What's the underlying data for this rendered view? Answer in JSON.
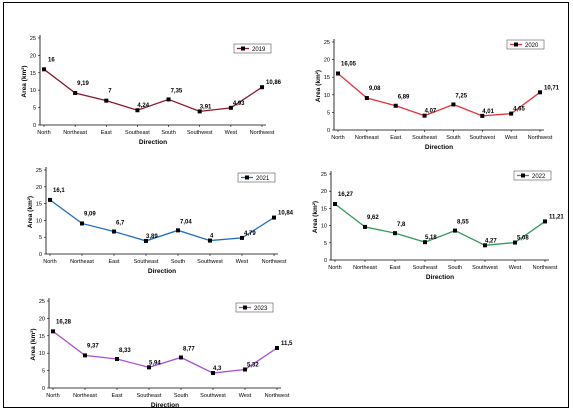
{
  "chart_data": [
    {
      "type": "line",
      "categories": [
        "North",
        "Northeast",
        "East",
        "Southeast",
        "South",
        "Southwest",
        "West",
        "Northwest"
      ],
      "series": [
        {
          "name": "2019",
          "values": [
            16,
            9.19,
            7,
            4.24,
            7.35,
            3.91,
            4.93,
            10.86
          ],
          "color": "#8b1a2e"
        }
      ],
      "data_labels": [
        "16",
        "9,19",
        "7",
        "4,24",
        "7,35",
        "3,91",
        "4,93",
        "10,86"
      ],
      "xlabel": "Direction",
      "ylabel": "Area (km²)",
      "ylim": [
        0,
        25
      ],
      "yticks": [
        "0",
        "5",
        "10",
        "15",
        "20",
        "25"
      ],
      "legend": "top-right",
      "grid": false
    },
    {
      "type": "line",
      "categories": [
        "North",
        "Northeast",
        "East",
        "Southeast",
        "South",
        "Southwest",
        "West",
        "Northwest"
      ],
      "series": [
        {
          "name": "2020",
          "values": [
            16.05,
            9.08,
            6.89,
            4.07,
            7.25,
            4.01,
            4.65,
            10.71
          ],
          "color": "#e0353b"
        }
      ],
      "data_labels": [
        "16,05",
        "9,08",
        "6,89",
        "4,07",
        "7,25",
        "4,01",
        "4,65",
        "10,71"
      ],
      "xlabel": "Direction",
      "ylabel": "Area (km²)",
      "ylim": [
        0,
        25
      ],
      "yticks": [
        "0",
        "5",
        "10",
        "15",
        "20",
        "25"
      ],
      "legend": "top-right",
      "grid": false
    },
    {
      "type": "line",
      "categories": [
        "North",
        "Northeast",
        "East",
        "Southeast",
        "South",
        "Southwest",
        "West",
        "Northwest"
      ],
      "series": [
        {
          "name": "2021",
          "values": [
            16.1,
            9.09,
            6.7,
            3.89,
            7.04,
            4,
            4.79,
            10.84
          ],
          "color": "#1f6fbf"
        }
      ],
      "data_labels": [
        "16,1",
        "9,09",
        "6,7",
        "3,89",
        "7,04",
        "4",
        "4,79",
        "10,84"
      ],
      "xlabel": "Direction",
      "ylabel": "Area (km²)",
      "ylim": [
        0,
        25
      ],
      "yticks": [
        "0",
        "5",
        "10",
        "15",
        "20",
        "25"
      ],
      "legend": "top-right",
      "grid": false
    },
    {
      "type": "line",
      "categories": [
        "North",
        "Northeast",
        "East",
        "Southeast",
        "South",
        "Southwest",
        "West",
        "Northwest"
      ],
      "series": [
        {
          "name": "2022",
          "values": [
            16.27,
            9.62,
            7.8,
            5.18,
            8.55,
            4.27,
            5.08,
            11.21
          ],
          "color": "#2e9c5a"
        }
      ],
      "data_labels": [
        "16,27",
        "9,62",
        "7,8",
        "5,18",
        "8,55",
        "4,27",
        "5,08",
        "11,21"
      ],
      "xlabel": "Direction",
      "ylabel": "Area (km²)",
      "ylim": [
        0,
        25
      ],
      "yticks": [
        "0",
        "5",
        "10",
        "15",
        "20",
        "25"
      ],
      "legend": "top-right",
      "grid": false
    },
    {
      "type": "line",
      "categories": [
        "North",
        "Northeast",
        "East",
        "Southeast",
        "South",
        "Southwest",
        "West",
        "Northwest"
      ],
      "series": [
        {
          "name": "2023",
          "values": [
            16.28,
            9.37,
            8.33,
            5.94,
            8.77,
            4.3,
            5.32,
            11.5
          ],
          "color": "#a64fd6"
        }
      ],
      "data_labels": [
        "16,28",
        "9,37",
        "8,33",
        "5,94",
        "8,77",
        "4,3",
        "5,32",
        "11,5"
      ],
      "xlabel": "Direction",
      "ylabel": "Area (km²)",
      "ylim": [
        0,
        25
      ],
      "yticks": [
        "0",
        "5",
        "10",
        "15",
        "20",
        "25"
      ],
      "legend": "top-right",
      "grid": false
    }
  ]
}
